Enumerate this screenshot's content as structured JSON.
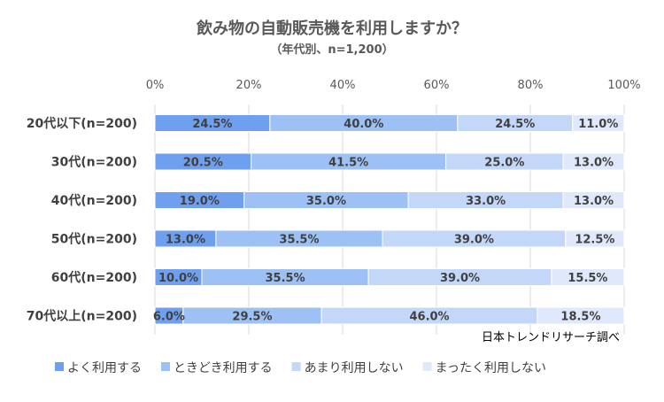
{
  "chart_data": {
    "type": "bar",
    "orientation": "horizontal",
    "stacked": true,
    "percent": true,
    "title": "飲み物の自動販売機を利用しますか？",
    "subtitle": "（年代別、n=1,200）",
    "source": "日本トレンドリサーチ調べ",
    "xlim": [
      0,
      100
    ],
    "xticks": [
      "0%",
      "20%",
      "40%",
      "60%",
      "80%",
      "100%"
    ],
    "grid": true,
    "legend_position": "bottom",
    "categories": [
      "20代以下(n=200)",
      "30代(n=200)",
      "40代(n=200)",
      "50代(n=200)",
      "60代(n=200)",
      "70代以上(n=200)"
    ],
    "series": [
      {
        "name": "よく利用する",
        "color": "#6fa0f0",
        "values": [
          24.5,
          20.5,
          19.0,
          13.0,
          10.0,
          6.0
        ]
      },
      {
        "name": "ときどき利用する",
        "color": "#9dc0f5",
        "values": [
          40.0,
          41.5,
          35.0,
          35.5,
          35.5,
          29.5
        ]
      },
      {
        "name": "あまり利用しない",
        "color": "#c3d7f8",
        "values": [
          24.5,
          25.0,
          33.0,
          39.0,
          39.0,
          46.0
        ]
      },
      {
        "name": "まったく利用しない",
        "color": "#dfe9fb",
        "values": [
          11.0,
          13.0,
          13.0,
          12.5,
          15.5,
          18.5
        ]
      }
    ]
  }
}
